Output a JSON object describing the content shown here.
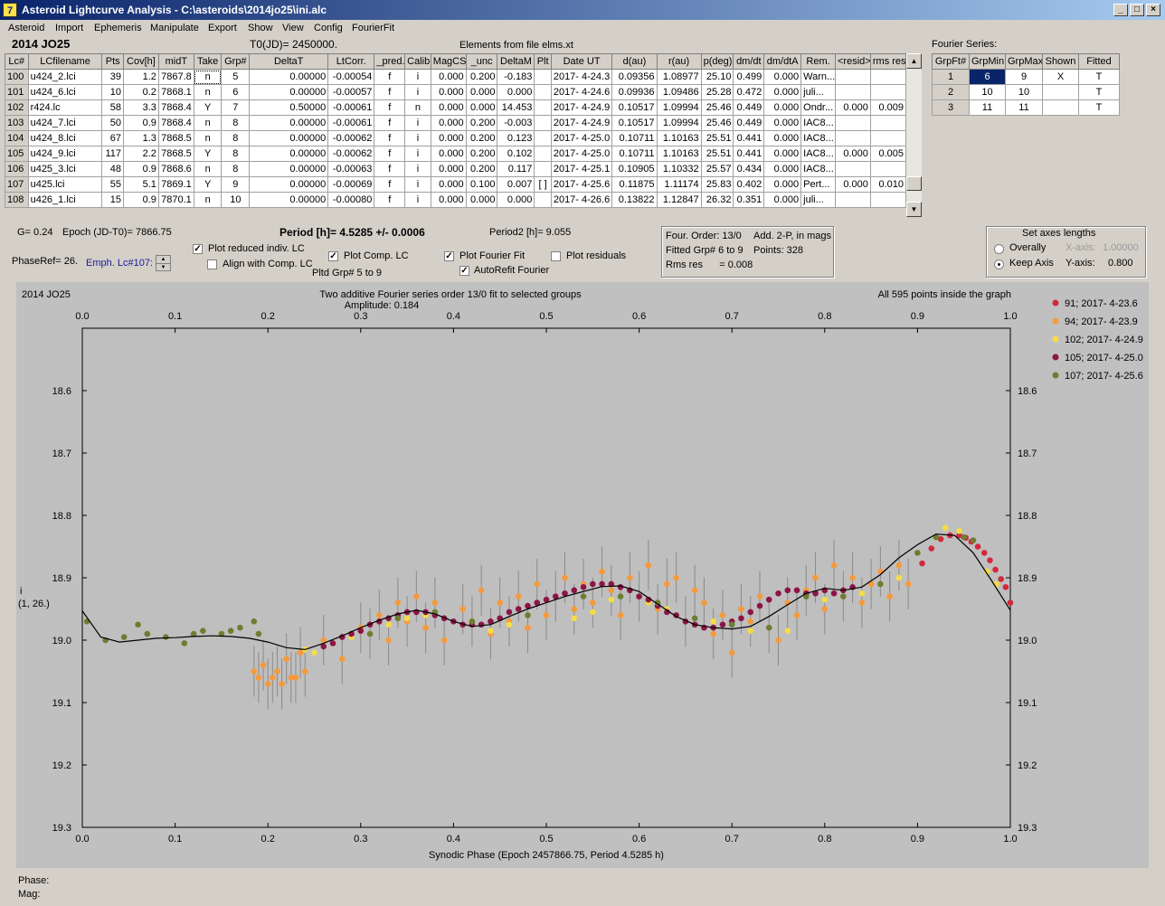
{
  "window": {
    "title": "Asteroid Lightcurve Analysis - C:\\asteroids\\2014jo25\\ini.alc",
    "app_icon": "7 icon"
  },
  "menu": [
    "Asteroid",
    "Import",
    "Ephemeris",
    "Manipulate",
    "Export",
    "Show",
    "View",
    "Config",
    "FourierFit"
  ],
  "header": {
    "asteroid": "2014 JO25",
    "t0": "T0(JD)= 2450000.",
    "elements": "Elements from file elms.xt"
  },
  "lc_table": {
    "columns": [
      "Lc#",
      "LCfilename",
      "Pts",
      "Cov[h]",
      "midT",
      "Take",
      "Grp#",
      "DeltaT",
      "LtCorr.",
      "_pred.",
      "Calib.",
      "MagCS",
      "_unc",
      "DeltaM",
      "Plt",
      "Date UT",
      "d(au)",
      "r(au)",
      "p(deg)",
      "dm/dt",
      "dm/dtA",
      "Rem.",
      "<resid>",
      "rms res"
    ],
    "rows": [
      [
        "100",
        "u424_2.lci",
        "39",
        "1.2",
        "7867.8",
        "n",
        "5",
        "0.00000",
        "-0.00054",
        "f",
        "i",
        "0.000",
        "0.200",
        "-0.183",
        "",
        "2017- 4-24.3",
        "0.09356",
        "1.08977",
        "25.10",
        "0.499",
        "0.000",
        "Warn...",
        "",
        ""
      ],
      [
        "101",
        "u424_6.lci",
        "10",
        "0.2",
        "7868.1",
        "n",
        "6",
        "0.00000",
        "-0.00057",
        "f",
        "i",
        "0.000",
        "0.000",
        "0.000",
        "",
        "2017- 4-24.6",
        "0.09936",
        "1.09486",
        "25.28",
        "0.472",
        "0.000",
        "juli...",
        "",
        ""
      ],
      [
        "102",
        "r424.lc",
        "58",
        "3.3",
        "7868.4",
        "Y",
        "7",
        "0.50000",
        "-0.00061",
        "f",
        "n",
        "0.000",
        "0.000",
        "14.453",
        "",
        "2017- 4-24.9",
        "0.10517",
        "1.09994",
        "25.46",
        "0.449",
        "0.000",
        "Ondr...",
        "0.000",
        "0.009"
      ],
      [
        "103",
        "u424_7.lci",
        "50",
        "0.9",
        "7868.4",
        "n",
        "8",
        "0.00000",
        "-0.00061",
        "f",
        "i",
        "0.000",
        "0.200",
        "-0.003",
        "",
        "2017- 4-24.9",
        "0.10517",
        "1.09994",
        "25.46",
        "0.449",
        "0.000",
        "IAC8...",
        "",
        ""
      ],
      [
        "104",
        "u424_8.lci",
        "67",
        "1.3",
        "7868.5",
        "n",
        "8",
        "0.00000",
        "-0.00062",
        "f",
        "i",
        "0.000",
        "0.200",
        "0.123",
        "",
        "2017- 4-25.0",
        "0.10711",
        "1.10163",
        "25.51",
        "0.441",
        "0.000",
        "IAC8...",
        "",
        ""
      ],
      [
        "105",
        "u424_9.lci",
        "117",
        "2.2",
        "7868.5",
        "Y",
        "8",
        "0.00000",
        "-0.00062",
        "f",
        "i",
        "0.000",
        "0.200",
        "0.102",
        "",
        "2017- 4-25.0",
        "0.10711",
        "1.10163",
        "25.51",
        "0.441",
        "0.000",
        "IAC8...",
        "0.000",
        "0.005"
      ],
      [
        "106",
        "u425_3.lci",
        "48",
        "0.9",
        "7868.6",
        "n",
        "8",
        "0.00000",
        "-0.00063",
        "f",
        "i",
        "0.000",
        "0.200",
        "0.117",
        "",
        "2017- 4-25.1",
        "0.10905",
        "1.10332",
        "25.57",
        "0.434",
        "0.000",
        "IAC8...",
        "",
        ""
      ],
      [
        "107",
        "u425.lci",
        "55",
        "5.1",
        "7869.1",
        "Y",
        "9",
        "0.00000",
        "-0.00069",
        "f",
        "i",
        "0.000",
        "0.100",
        "0.007",
        "[ ]",
        "2017- 4-25.6",
        "0.11875",
        "1.11174",
        "25.83",
        "0.402",
        "0.000",
        "Pert...",
        "0.000",
        "0.010"
      ],
      [
        "108",
        "u426_1.lci",
        "15",
        "0.9",
        "7870.1",
        "n",
        "10",
        "0.00000",
        "-0.00080",
        "f",
        "i",
        "0.000",
        "0.000",
        "0.000",
        "",
        "2017- 4-26.6",
        "0.13822",
        "1.12847",
        "26.32",
        "0.351",
        "0.000",
        "juli...",
        "",
        ""
      ]
    ]
  },
  "fourier_series": {
    "label": "Fourier Series:",
    "columns": [
      "GrpFt#",
      "GrpMin",
      "GrpMax",
      "Shown",
      "Fitted"
    ],
    "rows": [
      [
        "1",
        "6",
        "9",
        "X",
        "T"
      ],
      [
        "2",
        "10",
        "10",
        "",
        "T"
      ],
      [
        "3",
        "11",
        "11",
        "",
        "T"
      ]
    ]
  },
  "info": {
    "g": "G= 0.24",
    "epoch": "Epoch (JD-T0)= 7866.75",
    "period": "Period [h]= 4.5285 +/- 0.0006",
    "period2": "Period2 [h]= 9.055",
    "phaseref": "PhaseRef= 26.",
    "emph": "Emph. Lc#107:",
    "pltd_grp": "Pltd Grp#  5   to   9"
  },
  "options": {
    "plot_reduced": {
      "label": "Plot reduced indiv. LC",
      "checked": true
    },
    "align_comp": {
      "label": "Align with Comp. LC",
      "checked": false
    },
    "plot_comp": {
      "label": "Plot Comp. LC",
      "checked": true
    },
    "plot_fourier": {
      "label": "Plot Fourier Fit",
      "checked": true
    },
    "autorefit": {
      "label": "AutoRefit Fourier",
      "checked": true
    },
    "plot_residuals": {
      "label": "Plot residuals",
      "checked": false
    }
  },
  "fit_info": {
    "order": "Four. Order: 13/0",
    "add": "Add. 2-P, in mags",
    "fitted": "Fitted Grp# 6 to 9",
    "points": "Points: 328",
    "rms": "Rms res      = 0.008"
  },
  "axes_box": {
    "title": "Set axes lengths",
    "overally": "Overally",
    "keep_axis": "Keep Axis",
    "xaxis_label": "X-axis:",
    "xaxis_value": "1.00000",
    "yaxis_label": "Y-axis:",
    "yaxis_value": "0.800",
    "selected": "Keep Axis"
  },
  "chart_data": {
    "type": "scatter",
    "title_left": "2014 JO25",
    "title": "Two additive Fourier series order 13/0 fit to selected groups",
    "subtitle": "Amplitude: 0.184",
    "note": "All 595 points inside the graph",
    "xlabel": "Synodic Phase (Epoch 2457866.75, Period 4.5285 h)",
    "ylabel_line1": "i",
    "ylabel_line2": "(1, 26.)",
    "xlim": [
      0,
      1
    ],
    "ylim": [
      18.5,
      19.3
    ],
    "y_inverted": true,
    "x_ticks": [
      "0.0",
      "0.1",
      "0.2",
      "0.3",
      "0.4",
      "0.5",
      "0.6",
      "0.7",
      "0.8",
      "0.9",
      "1.0"
    ],
    "y_ticks": [
      "18.6",
      "18.7",
      "18.8",
      "18.9",
      "19.0",
      "19.1",
      "19.2",
      "19.3"
    ],
    "legend_position": "right",
    "series": [
      {
        "name": "91; 2017- 4-23.6",
        "color": "#d2283c",
        "x": [
          0.905,
          0.915,
          0.925,
          0.935,
          0.945,
          0.952,
          0.958,
          0.965,
          0.972,
          0.978,
          0.984,
          0.99,
          0.995,
          1.0
        ],
        "y": [
          18.877,
          18.853,
          18.838,
          18.832,
          18.832,
          18.836,
          18.842,
          18.85,
          18.86,
          18.872,
          18.887,
          18.902,
          18.915,
          18.94
        ]
      },
      {
        "name": "94; 2017- 4-23.9",
        "color": "#f59a3c",
        "x": [
          0.185,
          0.19,
          0.195,
          0.2,
          0.205,
          0.21,
          0.215,
          0.22,
          0.225,
          0.23,
          0.235,
          0.24,
          0.26,
          0.28,
          0.3,
          0.31,
          0.32,
          0.33,
          0.34,
          0.35,
          0.36,
          0.37,
          0.38,
          0.39,
          0.41,
          0.42,
          0.43,
          0.44,
          0.45,
          0.46,
          0.47,
          0.48,
          0.49,
          0.5,
          0.51,
          0.52,
          0.53,
          0.54,
          0.55,
          0.56,
          0.57,
          0.58,
          0.59,
          0.6,
          0.61,
          0.62,
          0.63,
          0.64,
          0.65,
          0.66,
          0.67,
          0.68,
          0.69,
          0.7,
          0.71,
          0.72,
          0.73,
          0.74,
          0.75,
          0.76,
          0.77,
          0.78,
          0.79,
          0.8,
          0.81,
          0.82,
          0.83,
          0.84,
          0.85,
          0.86,
          0.87,
          0.88,
          0.89
        ],
        "y": [
          19.05,
          19.06,
          19.04,
          19.07,
          19.06,
          19.05,
          19.07,
          19.03,
          19.06,
          19.06,
          19.02,
          19.05,
          19.0,
          19.03,
          18.98,
          18.99,
          18.96,
          19.0,
          18.94,
          18.97,
          18.93,
          18.98,
          18.94,
          19.0,
          18.95,
          18.97,
          18.92,
          18.99,
          18.94,
          18.97,
          18.93,
          18.98,
          18.91,
          18.96,
          18.93,
          18.9,
          18.95,
          18.91,
          18.94,
          18.89,
          18.92,
          18.96,
          18.9,
          18.93,
          18.88,
          18.95,
          18.91,
          18.9,
          18.97,
          18.92,
          18.94,
          18.99,
          18.96,
          19.02,
          18.95,
          18.97,
          18.93,
          18.98,
          19.0,
          18.94,
          18.96,
          18.92,
          18.9,
          18.95,
          18.88,
          18.93,
          18.9,
          18.94,
          18.91,
          18.89,
          18.93,
          18.88,
          18.91
        ]
      },
      {
        "name": "102; 2017- 4-24.9",
        "color": "#f5dc46",
        "x": [
          0.24,
          0.25,
          0.27,
          0.29,
          0.31,
          0.33,
          0.35,
          0.37,
          0.42,
          0.44,
          0.46,
          0.53,
          0.55,
          0.57,
          0.61,
          0.63,
          0.68,
          0.72,
          0.76,
          0.8,
          0.84,
          0.88,
          0.93,
          0.945,
          0.975,
          0.985
        ],
        "y": [
          19.015,
          19.02,
          19.005,
          18.995,
          18.99,
          18.975,
          18.965,
          18.96,
          18.97,
          18.985,
          18.975,
          18.965,
          18.955,
          18.935,
          18.94,
          18.95,
          18.97,
          18.985,
          18.985,
          18.935,
          18.925,
          18.9,
          18.82,
          18.825,
          18.89,
          18.91
        ]
      },
      {
        "name": "105; 2017- 4-25.0",
        "color": "#8c1446",
        "x": [
          0.26,
          0.27,
          0.28,
          0.29,
          0.3,
          0.31,
          0.32,
          0.33,
          0.34,
          0.35,
          0.36,
          0.37,
          0.38,
          0.39,
          0.4,
          0.41,
          0.42,
          0.43,
          0.44,
          0.45,
          0.46,
          0.47,
          0.48,
          0.49,
          0.5,
          0.51,
          0.52,
          0.53,
          0.54,
          0.55,
          0.56,
          0.57,
          0.58,
          0.59,
          0.6,
          0.61,
          0.62,
          0.63,
          0.64,
          0.65,
          0.66,
          0.67,
          0.68,
          0.69,
          0.7,
          0.71,
          0.72,
          0.73,
          0.74,
          0.75,
          0.76,
          0.77,
          0.78,
          0.79,
          0.8,
          0.81,
          0.82,
          0.83
        ],
        "y": [
          19.01,
          19.005,
          18.995,
          18.99,
          18.985,
          18.975,
          18.97,
          18.965,
          18.96,
          18.955,
          18.955,
          18.955,
          18.96,
          18.965,
          18.97,
          18.975,
          18.975,
          18.975,
          18.97,
          18.965,
          18.955,
          18.95,
          18.945,
          18.94,
          18.935,
          18.93,
          18.925,
          18.92,
          18.915,
          18.91,
          18.91,
          18.91,
          18.915,
          18.92,
          18.93,
          18.935,
          18.945,
          18.955,
          18.96,
          18.97,
          18.975,
          18.98,
          18.98,
          18.975,
          18.97,
          18.965,
          18.955,
          18.945,
          18.935,
          18.925,
          18.92,
          18.92,
          18.925,
          18.925,
          18.92,
          18.925,
          18.92,
          18.915
        ]
      },
      {
        "name": "107; 2017- 4-25.6",
        "color": "#6e7d32",
        "x": [
          0.005,
          0.025,
          0.045,
          0.06,
          0.07,
          0.09,
          0.11,
          0.12,
          0.13,
          0.15,
          0.16,
          0.17,
          0.185,
          0.19,
          0.31,
          0.34,
          0.38,
          0.42,
          0.48,
          0.54,
          0.58,
          0.62,
          0.66,
          0.7,
          0.74,
          0.78,
          0.82,
          0.86,
          0.9,
          0.92,
          0.95,
          0.96
        ],
        "y": [
          18.97,
          19.0,
          18.995,
          18.975,
          18.99,
          18.995,
          19.005,
          18.99,
          18.985,
          18.99,
          18.985,
          18.98,
          18.97,
          18.99,
          18.99,
          18.965,
          18.955,
          18.97,
          18.96,
          18.93,
          18.93,
          18.94,
          18.965,
          18.975,
          18.98,
          18.93,
          18.93,
          18.91,
          18.86,
          18.835,
          18.835,
          18.84
        ]
      }
    ],
    "fourier_fit": {
      "x": [
        0.0,
        0.02,
        0.04,
        0.06,
        0.08,
        0.1,
        0.12,
        0.14,
        0.16,
        0.18,
        0.2,
        0.22,
        0.24,
        0.26,
        0.28,
        0.3,
        0.32,
        0.34,
        0.36,
        0.38,
        0.4,
        0.42,
        0.44,
        0.46,
        0.48,
        0.5,
        0.52,
        0.54,
        0.56,
        0.58,
        0.6,
        0.62,
        0.64,
        0.66,
        0.68,
        0.7,
        0.72,
        0.74,
        0.76,
        0.78,
        0.8,
        0.82,
        0.84,
        0.86,
        0.88,
        0.9,
        0.92,
        0.94,
        0.96,
        0.98,
        1.0
      ],
      "y": [
        18.953,
        18.995,
        19.003,
        19.0,
        18.997,
        18.996,
        18.994,
        18.993,
        18.994,
        18.997,
        19.003,
        19.012,
        19.015,
        19.005,
        18.993,
        18.98,
        18.968,
        18.958,
        18.952,
        18.958,
        18.97,
        18.978,
        18.975,
        18.962,
        18.95,
        18.94,
        18.93,
        18.922,
        18.914,
        18.913,
        18.922,
        18.942,
        18.962,
        18.975,
        18.98,
        18.982,
        18.978,
        18.962,
        18.943,
        18.925,
        18.917,
        18.92,
        18.915,
        18.895,
        18.868,
        18.847,
        18.83,
        18.832,
        18.86,
        18.905,
        18.952
      ]
    }
  },
  "status": {
    "phase": "Phase:",
    "mag": "Mag:"
  }
}
